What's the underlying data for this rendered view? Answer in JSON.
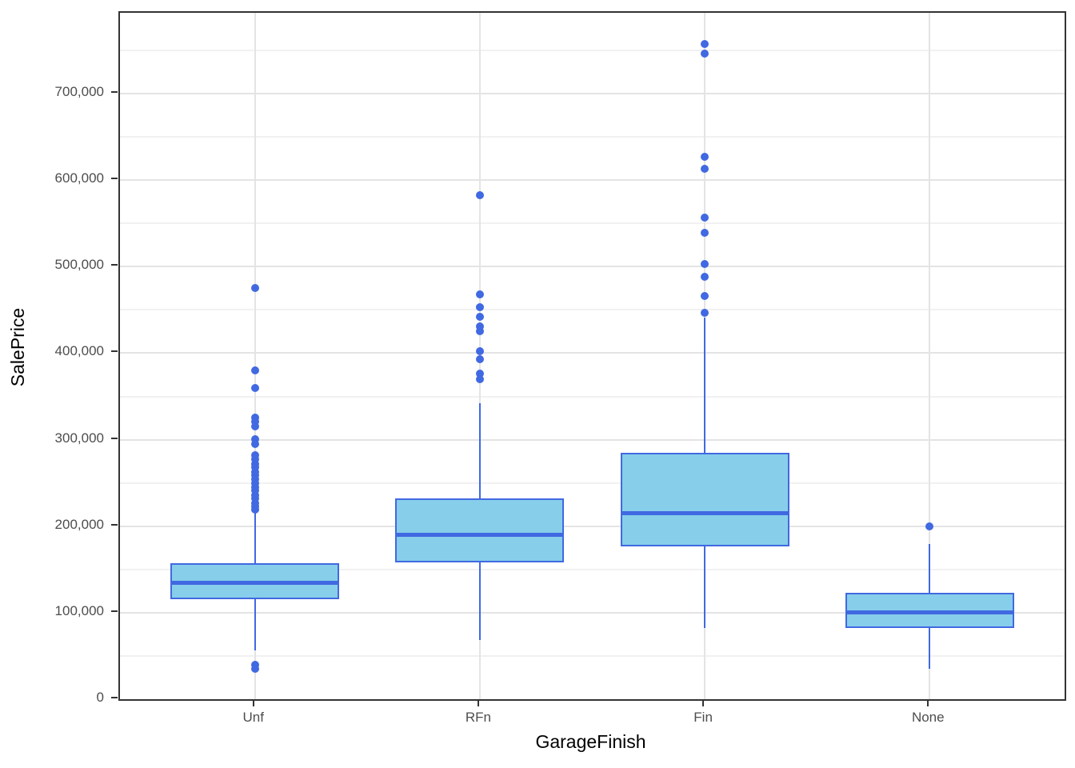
{
  "chart_data": {
    "type": "boxplot",
    "title": "",
    "xlabel": "GarageFinish",
    "ylabel": "SalePrice",
    "categories": [
      "Unf",
      "RFn",
      "Fin",
      "None"
    ],
    "ylim": [
      0,
      793500
    ],
    "y_major_ticks": [
      0,
      100000,
      200000,
      300000,
      400000,
      500000,
      600000,
      700000
    ],
    "y_tick_labels": [
      "0",
      "100,000",
      "200,000",
      "300,000",
      "400,000",
      "500,000",
      "600,000",
      "700,000"
    ],
    "y_minor_ticks": [
      50000,
      150000,
      250000,
      350000,
      450000,
      550000,
      650000,
      750000
    ],
    "grid": "horizontal major+minor, vertical major at category centers, dark panel border",
    "legend": "none",
    "series": [
      {
        "name": "Unf",
        "whisker_low": 56000,
        "q1": 116000,
        "median": 135000,
        "q3": 157000,
        "whisker_high": 216000,
        "outliers": [
          475000,
          380000,
          360000,
          326000,
          321000,
          315000,
          301000,
          295000,
          282000,
          277000,
          272000,
          268000,
          263000,
          259000,
          254000,
          250000,
          245000,
          241000,
          236000,
          232000,
          227000,
          223000,
          219000,
          40000,
          35000
        ]
      },
      {
        "name": "RFn",
        "whisker_low": 68000,
        "q1": 158000,
        "median": 190000,
        "q3": 232000,
        "whisker_high": 342000,
        "outliers": [
          583000,
          468000,
          453000,
          442000,
          431000,
          425000,
          402000,
          393000,
          376000,
          370000
        ]
      },
      {
        "name": "Fin",
        "whisker_low": 82000,
        "q1": 177000,
        "median": 215000,
        "q3": 285000,
        "whisker_high": 441000,
        "outliers": [
          757000,
          746000,
          627000,
          613000,
          557000,
          539000,
          503000,
          488000,
          466000,
          447000
        ]
      },
      {
        "name": "None",
        "whisker_low": 35000,
        "q1": 82000,
        "median": 100000,
        "q3": 123000,
        "whisker_high": 179000,
        "outliers": [
          200000
        ]
      }
    ],
    "colors": {
      "box_fill": "#87CEEB",
      "box_stroke": "#4169E1",
      "median": "#4169E1",
      "whisker": "#4169E1",
      "outlier": "#4169E1",
      "grid_major": "#e4e4e4",
      "grid_minor": "#f1f1f1",
      "panel_border": "#333333",
      "tick_text": "#4d4d4d",
      "axis_title_text": "#000000"
    }
  }
}
